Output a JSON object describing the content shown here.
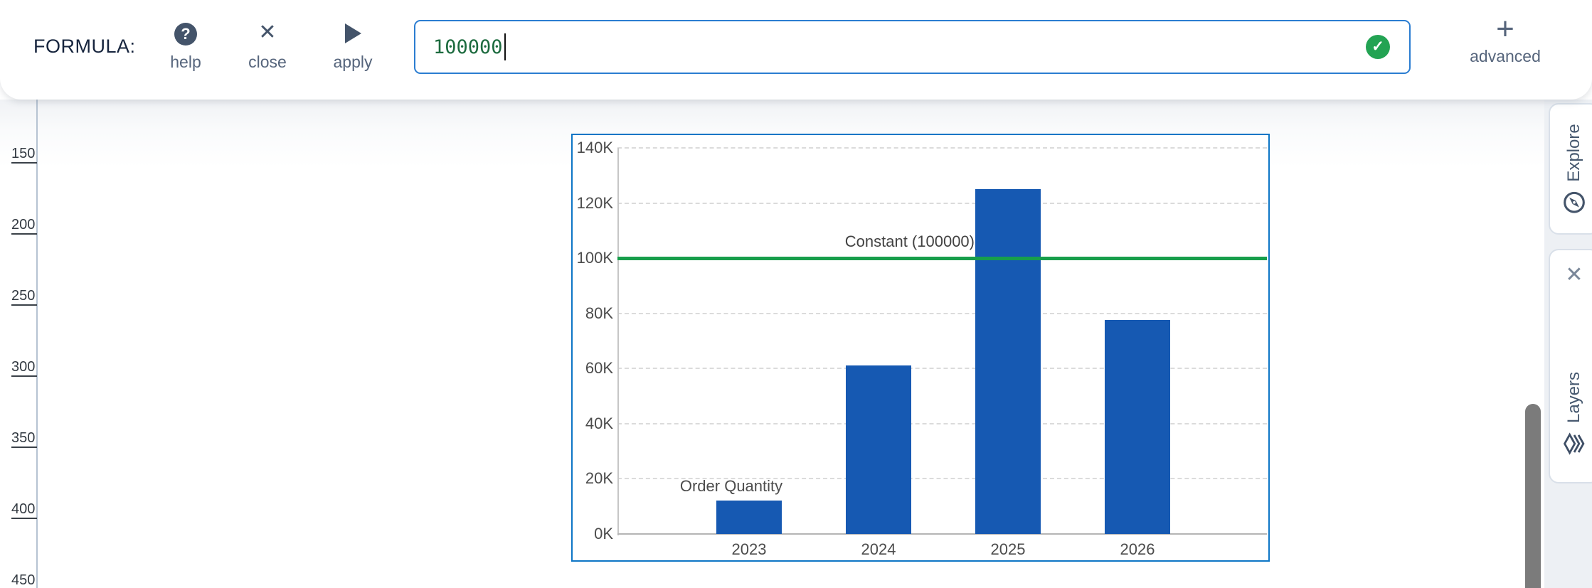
{
  "formula_bar": {
    "label": "FORMULA:",
    "help_label": "help",
    "close_label": "close",
    "apply_label": "apply",
    "input_value": "100000",
    "advanced_label": "advanced"
  },
  "icons": {
    "help_glyph": "?",
    "close_glyph": "✕",
    "check_glyph": "✓",
    "plus_glyph": "+",
    "panel_close_glyph": "✕"
  },
  "ruler": {
    "values": [
      "150",
      "200",
      "250",
      "300",
      "350",
      "400",
      "450"
    ]
  },
  "chart_data": {
    "type": "bar",
    "title": "",
    "categories": [
      "2023",
      "2024",
      "2025",
      "2026"
    ],
    "values": [
      12000,
      61000,
      125000,
      77500
    ],
    "series_label": "Order Quantity",
    "xlabel": "",
    "ylabel": "",
    "ylim": [
      0,
      140000
    ],
    "ytick_step": 20000,
    "ytick_labels": [
      "0K",
      "20K",
      "40K",
      "60K",
      "80K",
      "100K",
      "120K",
      "140K"
    ],
    "grid": true,
    "legend": "none",
    "reference_line": {
      "label": "Constant (100000)",
      "value": 100000
    }
  },
  "right_panel": {
    "explore_label": "Explore",
    "layers_label": "Layers"
  },
  "colors": {
    "chart_selection_border": "#0e76c6",
    "bar": "#1659b2",
    "reference_line": "#179e4b",
    "input_border": "#2b7dd1",
    "input_text": "#1d6b3f",
    "valid_badge": "#23a353",
    "icon_slate": "#44546a",
    "label_slate": "#56657c"
  }
}
